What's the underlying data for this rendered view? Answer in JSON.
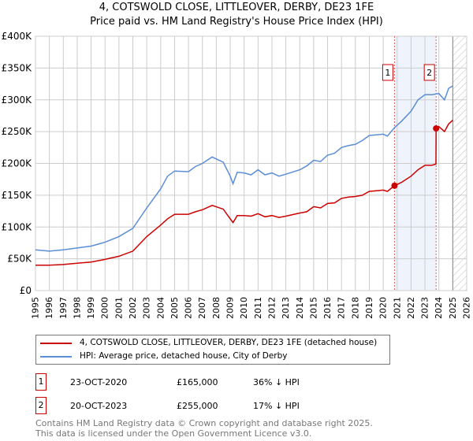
{
  "title": "4, COTSWOLD CLOSE, LITTLEOVER, DERBY, DE23 1FE",
  "subtitle": "Price paid vs. HM Land Registry's House Price Index (HPI)",
  "chart_data": {
    "type": "line",
    "xlim": [
      1995,
      2026
    ],
    "ylim": [
      0,
      400000
    ],
    "y_ticks": [
      {
        "v": 0,
        "label": "£0"
      },
      {
        "v": 50000,
        "label": "£50K"
      },
      {
        "v": 100000,
        "label": "£100K"
      },
      {
        "v": 150000,
        "label": "£150K"
      },
      {
        "v": 200000,
        "label": "£200K"
      },
      {
        "v": 250000,
        "label": "£250K"
      },
      {
        "v": 300000,
        "label": "£300K"
      },
      {
        "v": 350000,
        "label": "£350K"
      },
      {
        "v": 400000,
        "label": "£400K"
      }
    ],
    "x_ticks": [
      "1995",
      "1996",
      "1997",
      "1998",
      "1999",
      "2000",
      "2001",
      "2002",
      "2003",
      "2004",
      "2005",
      "2006",
      "2007",
      "2008",
      "2009",
      "2010",
      "2011",
      "2012",
      "2013",
      "2014",
      "2015",
      "2016",
      "2017",
      "2018",
      "2019",
      "2020",
      "2021",
      "2022",
      "2023",
      "2024",
      "2025",
      "2026"
    ],
    "series": [
      {
        "name": "4, COTSWOLD CLOSE, LITTLEOVER, DERBY, DE23 1FE (detached house)",
        "color": "#cc0000",
        "x": [
          1995,
          1996,
          1997,
          1998,
          1999,
          2000,
          2001,
          2002,
          2003,
          2004,
          2004.5,
          2005,
          2006,
          2006.5,
          2007,
          2007.7,
          2008.5,
          2009,
          2009.2,
          2009.5,
          2010,
          2010.5,
          2011,
          2011.5,
          2012,
          2012.5,
          2013,
          2014,
          2014.5,
          2015,
          2015.5,
          2016,
          2016.5,
          2017,
          2017.5,
          2018,
          2018.5,
          2019,
          2019.5,
          2020,
          2020.3,
          2020.81,
          2021.3,
          2022,
          2022.5,
          2023,
          2023.5,
          2023.79,
          2023.8,
          2024,
          2024.4,
          2024.7,
          2025
        ],
        "y": [
          40000,
          40000,
          41000,
          43000,
          45000,
          49000,
          54000,
          62000,
          85000,
          103000,
          113000,
          120000,
          120000,
          124000,
          127000,
          134000,
          128000,
          113000,
          107000,
          118000,
          118000,
          117000,
          121000,
          116000,
          118000,
          115000,
          117000,
          122000,
          124000,
          132000,
          130000,
          137000,
          138000,
          145000,
          147000,
          148000,
          150000,
          156000,
          157000,
          158000,
          156000,
          165000,
          170000,
          180000,
          190000,
          197000,
          197000,
          199000,
          255000,
          258000,
          250000,
          262000,
          268000
        ]
      },
      {
        "name": "HPI: Average price, detached house, City of Derby",
        "color": "#5b8ed6",
        "x": [
          1995,
          1996,
          1997,
          1998,
          1999,
          2000,
          2001,
          2002,
          2003,
          2004,
          2004.5,
          2005,
          2006,
          2006.5,
          2007,
          2007.7,
          2008.5,
          2009,
          2009.2,
          2009.5,
          2010,
          2010.5,
          2011,
          2011.5,
          2012,
          2012.5,
          2013,
          2014,
          2014.5,
          2015,
          2015.5,
          2016,
          2016.5,
          2017,
          2017.5,
          2018,
          2018.5,
          2019,
          2019.5,
          2020,
          2020.3,
          2020.8,
          2021.3,
          2022,
          2022.5,
          2023,
          2023.5,
          2024,
          2024.4,
          2024.7,
          2025
        ],
        "y": [
          64000,
          62000,
          64000,
          67000,
          70000,
          76000,
          85000,
          98000,
          130000,
          160000,
          180000,
          188000,
          187000,
          195000,
          200000,
          210000,
          202000,
          180000,
          168000,
          186000,
          185000,
          182000,
          190000,
          182000,
          185000,
          180000,
          183000,
          190000,
          196000,
          205000,
          203000,
          213000,
          216000,
          225000,
          228000,
          230000,
          236000,
          244000,
          245000,
          246000,
          243000,
          256000,
          266000,
          282000,
          300000,
          308000,
          308000,
          310000,
          300000,
          318000,
          322000
        ]
      }
    ],
    "sales": [
      {
        "label": "1",
        "x": 2020.81,
        "y": 165000
      },
      {
        "label": "2",
        "x": 2023.8,
        "y": 255000
      }
    ],
    "forecast_from": 2025
  },
  "legend": [
    "4, COTSWOLD CLOSE, LITTLEOVER, DERBY, DE23 1FE (detached house)",
    "HPI: Average price, detached house, City of Derby"
  ],
  "transactions": [
    {
      "num": "1",
      "date": "23-OCT-2020",
      "price": "£165,000",
      "hpi": "36% ↓ HPI"
    },
    {
      "num": "2",
      "date": "20-OCT-2023",
      "price": "£255,000",
      "hpi": "17% ↓ HPI"
    }
  ],
  "footer": [
    "Contains HM Land Registry data © Crown copyright and database right 2025.",
    "This data is licensed under the Open Government Licence v3.0."
  ]
}
